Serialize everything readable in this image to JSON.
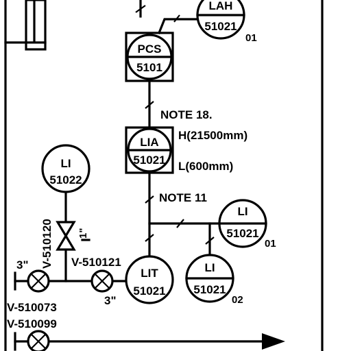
{
  "instruments": {
    "lah": {
      "function": "LAH",
      "number": "51021",
      "suffix": "01"
    },
    "pcs": {
      "function": "PCS",
      "number": "5101"
    },
    "lia": {
      "function": "LIA",
      "number": "51021"
    },
    "li_51022": {
      "function": "LI",
      "number": "51022"
    },
    "lit": {
      "function": "LIT",
      "number": "51021"
    },
    "li_01": {
      "function": "LI",
      "number": "51021",
      "suffix": "01"
    },
    "li_02": {
      "function": "LI",
      "number": "51021",
      "suffix": "02"
    }
  },
  "notes": {
    "note_18": "NOTE 18.",
    "note_11": "NOTE 11",
    "high_level": "H(21500mm)",
    "low_level": "L(600mm)"
  },
  "valves": {
    "v510120": "V-510120",
    "v510121": "V-510121",
    "v510073": "V-510073",
    "v510099": "V-510099"
  },
  "sizes": {
    "size_left": "3\"",
    "size_bottom": "3\"",
    "size_small": "1\""
  }
}
